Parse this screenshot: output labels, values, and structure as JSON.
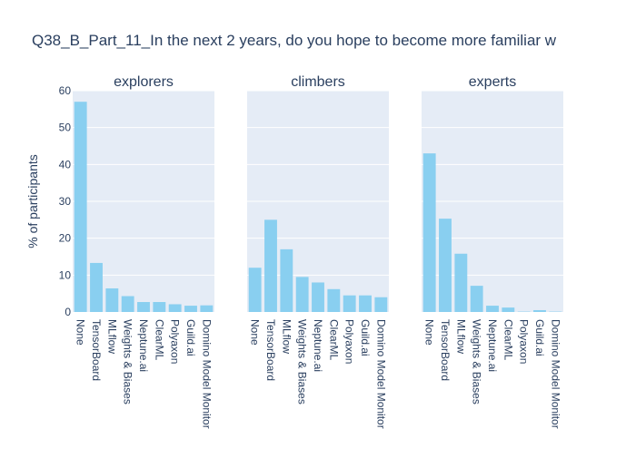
{
  "chart_data": {
    "type": "bar",
    "title": "Q38_B_Part_11_In the next 2 years, do you hope to become more familiar w",
    "ylabel": "% of participants",
    "ylim": [
      0,
      60
    ],
    "yticks": [
      0,
      10,
      20,
      30,
      40,
      50,
      60
    ],
    "grid": true,
    "bar_color": "#89cff0",
    "plot_bg": "#e5ecf6",
    "grid_color": "#ffffff",
    "text_color": "#2a3f5f",
    "categories": [
      "None",
      "TensorBoard",
      "MLflow",
      "Weights & Biases",
      "Neptune.ai",
      "ClearML",
      "Polyaxon",
      "Guild.ai",
      "Domino Model Monitor"
    ],
    "panels": [
      {
        "name": "explorers",
        "categories": [
          "None",
          "TensorBoard",
          "MLflow",
          "Weights & Biases",
          "Neptune.ai",
          "ClearML",
          "Polyaxon",
          "Guild.ai",
          "Domino Model Monitor"
        ],
        "values": [
          57,
          13.3,
          6.4,
          4.3,
          2.7,
          2.7,
          2.1,
          1.7,
          1.8
        ]
      },
      {
        "name": "climbers",
        "categories": [
          "None",
          "TensorBoard",
          "MLflow",
          "Weights & Biases",
          "Neptune.ai",
          "ClearML",
          "Polyaxon",
          "Guild.ai",
          "Domino Model Monitor"
        ],
        "values": [
          12,
          25,
          17,
          9.5,
          8,
          6.2,
          4.5,
          4.5,
          4
        ]
      },
      {
        "name": "experts",
        "categories": [
          "None",
          "TensorBoard",
          "MLflow",
          "Weights & Biases",
          "Neptune.ai",
          "ClearML",
          "Polyaxon",
          "Guild.ai",
          "Domino Model Monitor"
        ],
        "values": [
          43,
          25.3,
          15.8,
          7.1,
          1.7,
          1.2,
          0.1,
          0.5,
          0.1
        ]
      }
    ]
  }
}
